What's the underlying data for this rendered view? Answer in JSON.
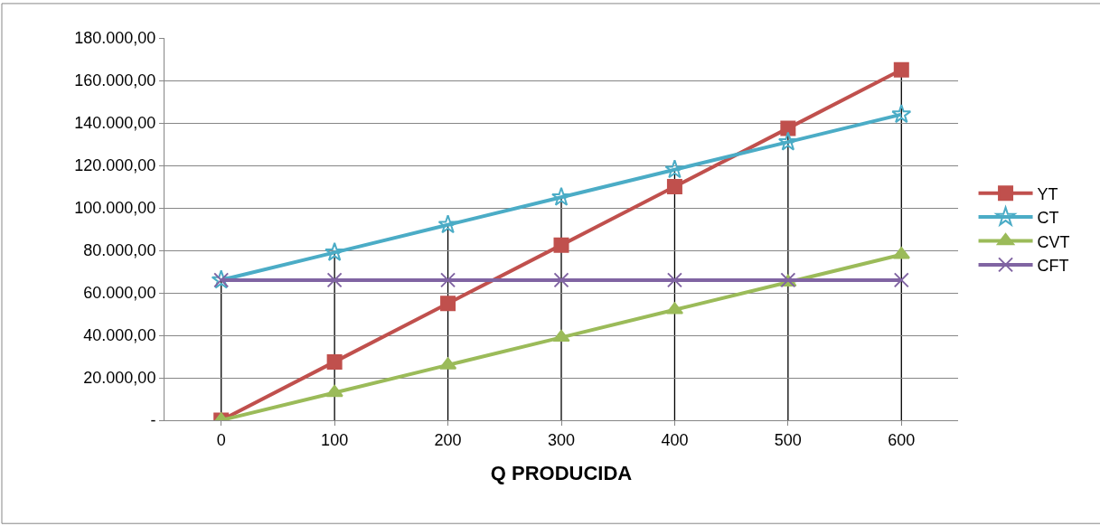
{
  "chart_data": {
    "type": "line",
    "xlabel": "Q PRODUCIDA",
    "categories": [
      "0",
      "100",
      "200",
      "300",
      "400",
      "500",
      "600"
    ],
    "series": [
      {
        "name": "YT",
        "color": "#c0504d",
        "marker": "square",
        "values": [
          0,
          27500,
          55000,
          82500,
          110000,
          137500,
          165000
        ]
      },
      {
        "name": "CT",
        "color": "#4bacc6",
        "marker": "star",
        "values": [
          66000,
          79000,
          92000,
          105000,
          118000,
          131000,
          144000
        ]
      },
      {
        "name": "CVT",
        "color": "#9bbb59",
        "marker": "triangle",
        "values": [
          0,
          13000,
          26000,
          39000,
          52000,
          65000,
          78000
        ]
      },
      {
        "name": "CFT",
        "color": "#8064a2",
        "marker": "cross",
        "values": [
          66000,
          66000,
          66000,
          66000,
          66000,
          66000,
          66000
        ]
      }
    ],
    "ylim": [
      0,
      180000
    ],
    "yticks": [
      {
        "value": 0,
        "label": "-"
      },
      {
        "value": 20000,
        "label": "20.000,00"
      },
      {
        "value": 40000,
        "label": "40.000,00"
      },
      {
        "value": 60000,
        "label": "60.000,00"
      },
      {
        "value": 80000,
        "label": "80.000,00"
      },
      {
        "value": 100000,
        "label": "100.000,00"
      },
      {
        "value": 120000,
        "label": "120.000,00"
      },
      {
        "value": 140000,
        "label": "140.000,00"
      },
      {
        "value": 160000,
        "label": "160.000,00"
      },
      {
        "value": 180000,
        "label": "180.000,00"
      }
    ],
    "grid": "y",
    "legend": "right",
    "line_style": "solid",
    "ref_lines": [
      {
        "axis": "x",
        "value": "0",
        "color": "#000000"
      },
      {
        "axis": "x",
        "value": "100",
        "color": "#000000"
      },
      {
        "axis": "x",
        "value": "200",
        "color": "#000000"
      },
      {
        "axis": "x",
        "value": "300",
        "color": "#000000"
      },
      {
        "axis": "x",
        "value": "400",
        "color": "#000000"
      },
      {
        "axis": "x",
        "value": "500",
        "color": "#000000"
      },
      {
        "axis": "x",
        "value": "600",
        "color": "#000000"
      }
    ]
  }
}
